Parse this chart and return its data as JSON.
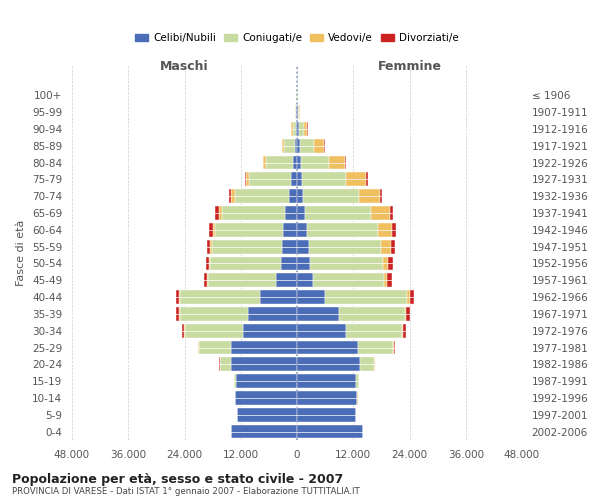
{
  "age_groups": [
    "0-4",
    "5-9",
    "10-14",
    "15-19",
    "20-24",
    "25-29",
    "30-34",
    "35-39",
    "40-44",
    "45-49",
    "50-54",
    "55-59",
    "60-64",
    "65-69",
    "70-74",
    "75-79",
    "80-84",
    "85-89",
    "90-94",
    "95-99",
    "100+"
  ],
  "birth_years": [
    "2002-2006",
    "1997-2001",
    "1992-1996",
    "1987-1991",
    "1982-1986",
    "1977-1981",
    "1972-1976",
    "1967-1971",
    "1962-1966",
    "1957-1961",
    "1952-1956",
    "1947-1951",
    "1942-1946",
    "1937-1941",
    "1932-1936",
    "1927-1931",
    "1922-1926",
    "1917-1921",
    "1912-1916",
    "1907-1911",
    "≤ 1906"
  ],
  "males": {
    "celibi": [
      14000,
      12800,
      13200,
      13000,
      14000,
      14000,
      11500,
      10500,
      8000,
      4500,
      3500,
      3200,
      3000,
      2500,
      1800,
      1200,
      800,
      500,
      300,
      200,
      100
    ],
    "coniugati": [
      50,
      50,
      100,
      500,
      2500,
      7000,
      12500,
      14500,
      17000,
      14500,
      15000,
      15000,
      14500,
      13500,
      11500,
      9000,
      5800,
      2200,
      600,
      150,
      50
    ],
    "vedovi": [
      10,
      10,
      10,
      20,
      30,
      50,
      50,
      80,
      100,
      150,
      200,
      300,
      400,
      600,
      800,
      700,
      600,
      500,
      300,
      80,
      30
    ],
    "divorziati": [
      10,
      10,
      10,
      20,
      50,
      150,
      400,
      700,
      800,
      700,
      700,
      800,
      900,
      800,
      500,
      300,
      150,
      100,
      50,
      20,
      10
    ]
  },
  "females": {
    "nubili": [
      14000,
      12500,
      12800,
      12500,
      13500,
      13000,
      10500,
      9000,
      6000,
      3500,
      2800,
      2500,
      2200,
      1800,
      1200,
      1000,
      800,
      600,
      400,
      200,
      100
    ],
    "coniugate": [
      30,
      50,
      100,
      700,
      3000,
      7500,
      12000,
      14000,
      17500,
      15000,
      15500,
      15500,
      15000,
      14000,
      12000,
      9500,
      6000,
      3000,
      1000,
      200,
      50
    ],
    "vedove": [
      10,
      10,
      10,
      30,
      50,
      100,
      150,
      300,
      500,
      800,
      1200,
      2000,
      3000,
      4000,
      4500,
      4200,
      3500,
      2200,
      800,
      200,
      50
    ],
    "divorziate": [
      10,
      10,
      10,
      20,
      80,
      200,
      500,
      800,
      1000,
      900,
      900,
      1000,
      900,
      700,
      500,
      350,
      200,
      100,
      50,
      20,
      10
    ]
  },
  "colors": {
    "celibi": "#4b6cb7",
    "coniugati": "#c8dba0",
    "vedovi": "#f0c060",
    "divorziati": "#cc2222"
  },
  "title": "Popolazione per età, sesso e stato civile - 2007",
  "subtitle": "PROVINCIA DI VARESE - Dati ISTAT 1° gennaio 2007 - Elaborazione TUTTITALIA.IT",
  "xlabel_left": "Maschi",
  "xlabel_right": "Femmine",
  "ylabel_left": "Fasce di età",
  "xlim": 48000,
  "xticks": [
    -48000,
    -36000,
    -24000,
    -12000,
    0,
    12000,
    24000,
    36000,
    48000
  ],
  "xticklabels": [
    "48.000",
    "36.000",
    "24.000",
    "12.000",
    "0",
    "12.000",
    "24.000",
    "36.000",
    "48.000"
  ],
  "legend_labels": [
    "Celibi/Nubili",
    "Coniugati/e",
    "Vedovi/e",
    "Divorziati/e"
  ],
  "legend_colors": [
    "#4b6cb7",
    "#c8dba0",
    "#f0c060",
    "#cc2222"
  ],
  "background_color": "#ffffff",
  "grid_color": "#cccccc"
}
